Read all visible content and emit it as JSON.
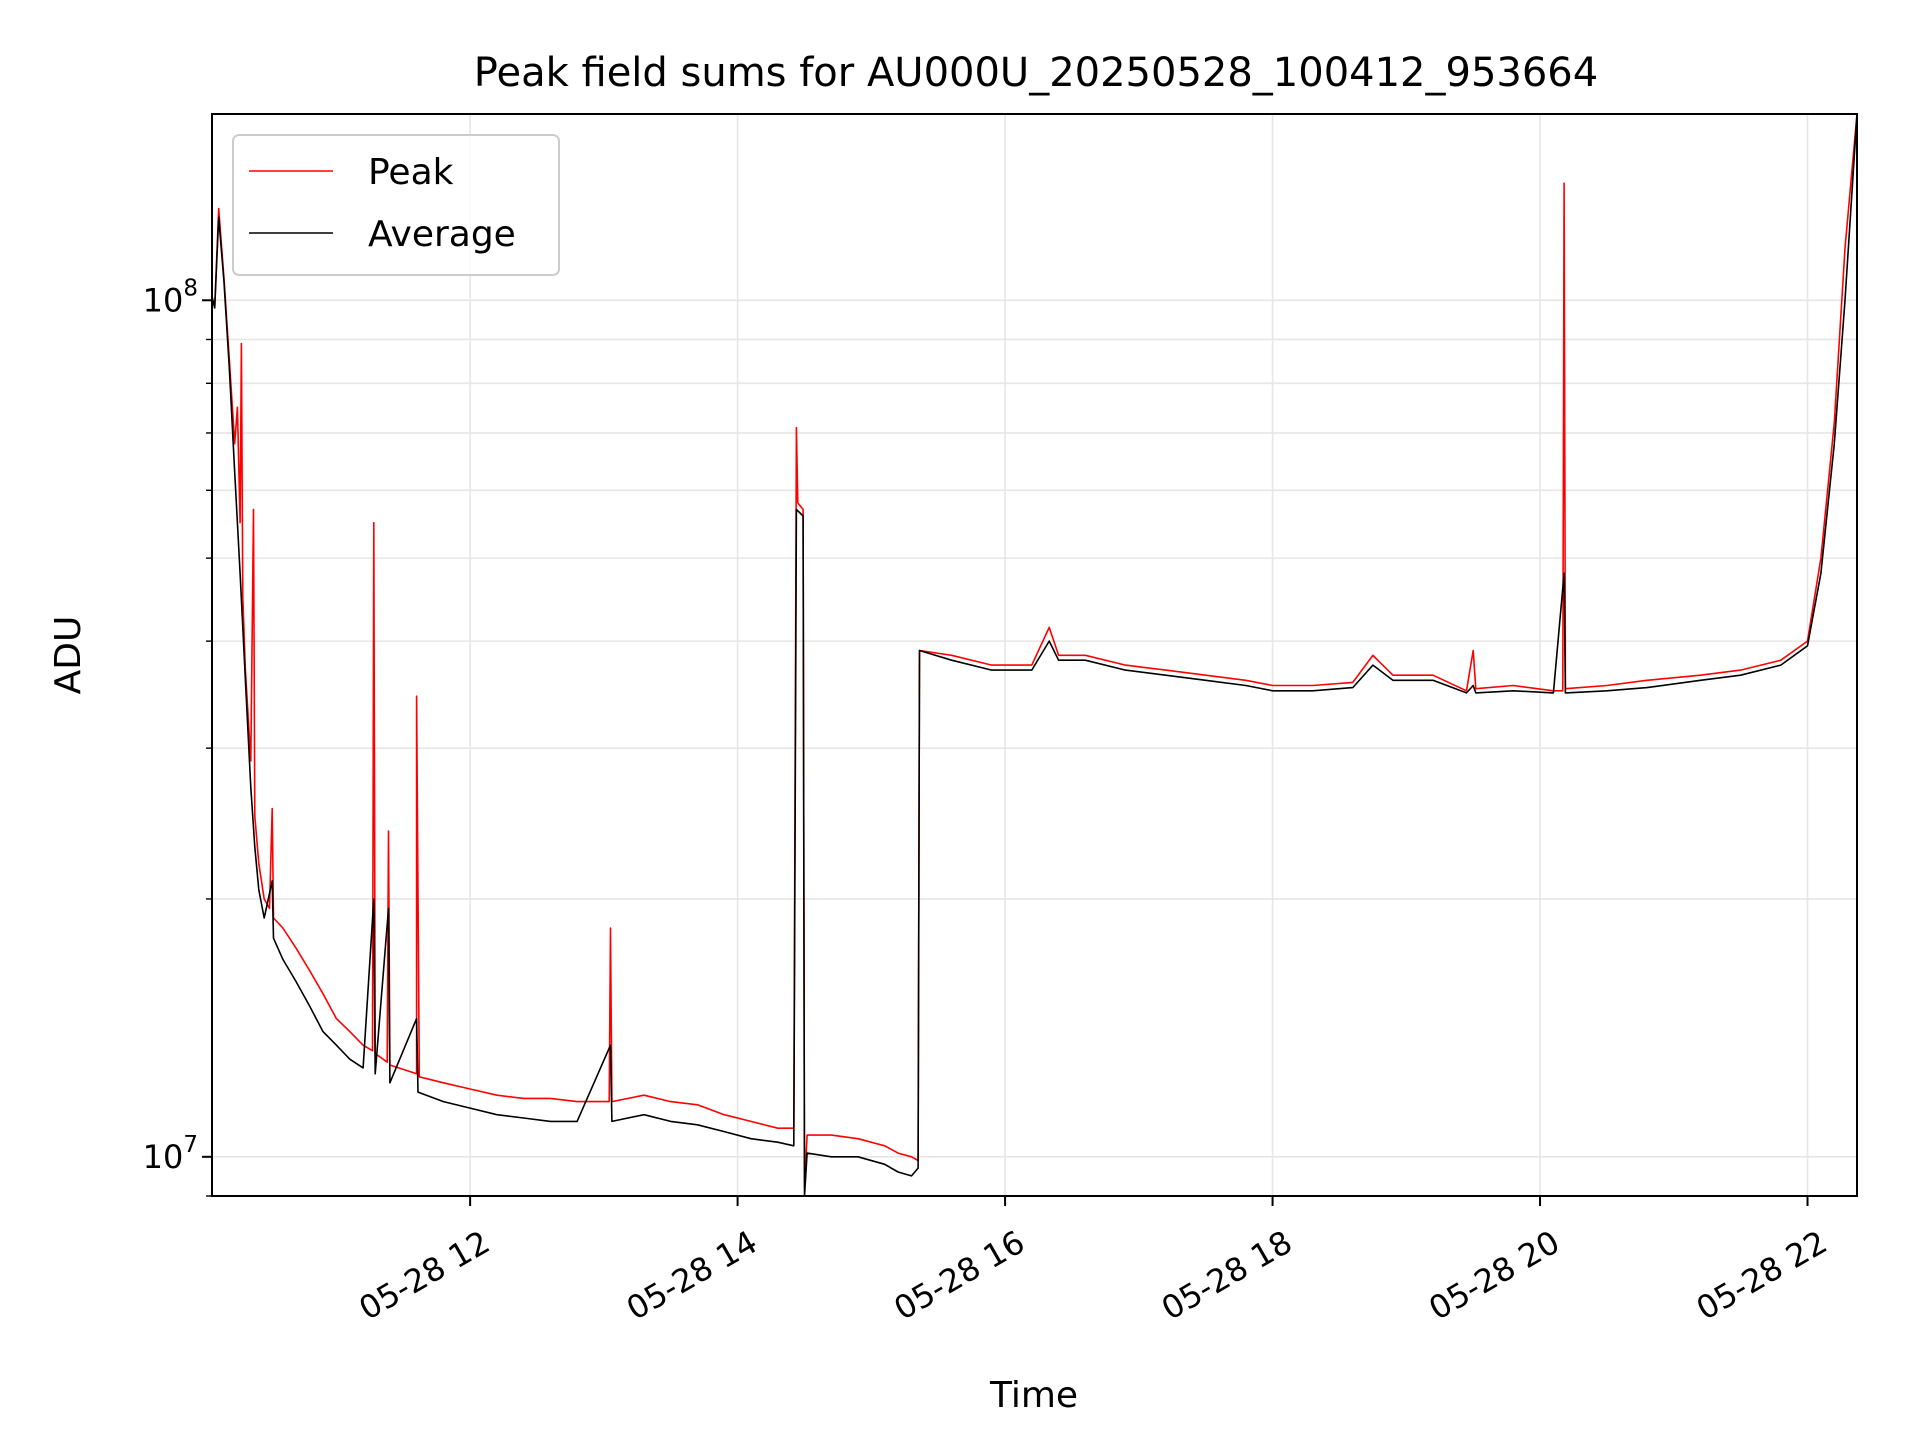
{
  "chart_data": {
    "type": "line",
    "title": "Peak field sums for AU000U_20250528_100412_953664",
    "xlabel": "Time",
    "ylabel": "ADU",
    "y_scale": "log",
    "x_unit": "hours (2025-05-28)",
    "xlim": [
      10.07,
      22.37
    ],
    "ylim": [
      9000000,
      165000000
    ],
    "x_ticks": [
      {
        "value": 12,
        "label": "05-28 12"
      },
      {
        "value": 14,
        "label": "05-28 14"
      },
      {
        "value": 16,
        "label": "05-28 16"
      },
      {
        "value": 18,
        "label": "05-28 18"
      },
      {
        "value": 20,
        "label": "05-28 20"
      },
      {
        "value": 22,
        "label": "05-28 22"
      }
    ],
    "y_ticks": [
      {
        "value": 10000000,
        "base": "10",
        "exp": "7"
      },
      {
        "value": 100000000,
        "base": "10",
        "exp": "8"
      }
    ],
    "grid": true,
    "legend_position": "top-left",
    "series": [
      {
        "name": "Peak",
        "color": "#ff0000",
        "points": [
          [
            10.07,
            101000000
          ],
          [
            10.09,
            98000000
          ],
          [
            10.12,
            128000000
          ],
          [
            10.16,
            106000000
          ],
          [
            10.2,
            85000000
          ],
          [
            10.24,
            68000000
          ],
          [
            10.26,
            75000000
          ],
          [
            10.28,
            55000000
          ],
          [
            10.29,
            89000000
          ],
          [
            10.3,
            45000000
          ],
          [
            10.32,
            37000000
          ],
          [
            10.36,
            29000000
          ],
          [
            10.38,
            57000000
          ],
          [
            10.39,
            25000000
          ],
          [
            10.42,
            22000000
          ],
          [
            10.46,
            20000000
          ],
          [
            10.5,
            19500000
          ],
          [
            10.52,
            25500000
          ],
          [
            10.53,
            19000000
          ],
          [
            10.6,
            18500000
          ],
          [
            10.7,
            17500000
          ],
          [
            10.8,
            16500000
          ],
          [
            10.9,
            15500000
          ],
          [
            11.0,
            14500000
          ],
          [
            11.1,
            14000000
          ],
          [
            11.2,
            13500000
          ],
          [
            11.27,
            13300000
          ],
          [
            11.28,
            55000000
          ],
          [
            11.29,
            13200000
          ],
          [
            11.38,
            12900000
          ],
          [
            11.39,
            24000000
          ],
          [
            11.4,
            12800000
          ],
          [
            11.6,
            12500000
          ],
          [
            11.6,
            34500000
          ],
          [
            11.62,
            12400000
          ],
          [
            11.8,
            12200000
          ],
          [
            12.0,
            12000000
          ],
          [
            12.2,
            11800000
          ],
          [
            12.4,
            11700000
          ],
          [
            12.6,
            11700000
          ],
          [
            12.8,
            11600000
          ],
          [
            13.04,
            11600000
          ],
          [
            13.05,
            18500000
          ],
          [
            13.06,
            11600000
          ],
          [
            13.3,
            11800000
          ],
          [
            13.5,
            11600000
          ],
          [
            13.7,
            11500000
          ],
          [
            13.9,
            11200000
          ],
          [
            14.1,
            11000000
          ],
          [
            14.3,
            10800000
          ],
          [
            14.42,
            10800000
          ],
          [
            14.44,
            71000000
          ],
          [
            14.45,
            58000000
          ],
          [
            14.49,
            57000000
          ],
          [
            14.5,
            9200000
          ],
          [
            14.52,
            10600000
          ],
          [
            14.7,
            10600000
          ],
          [
            14.9,
            10500000
          ],
          [
            15.1,
            10300000
          ],
          [
            15.2,
            10100000
          ],
          [
            15.3,
            10000000
          ],
          [
            15.35,
            9900000
          ],
          [
            15.36,
            39000000
          ],
          [
            15.6,
            38500000
          ],
          [
            15.9,
            37500000
          ],
          [
            16.2,
            37500000
          ],
          [
            16.33,
            41500000
          ],
          [
            16.4,
            38500000
          ],
          [
            16.6,
            38500000
          ],
          [
            16.9,
            37500000
          ],
          [
            17.2,
            37000000
          ],
          [
            17.5,
            36500000
          ],
          [
            17.8,
            36000000
          ],
          [
            18.0,
            35500000
          ],
          [
            18.3,
            35500000
          ],
          [
            18.6,
            35800000
          ],
          [
            18.75,
            38500000
          ],
          [
            18.9,
            36500000
          ],
          [
            19.2,
            36500000
          ],
          [
            19.45,
            35000000
          ],
          [
            19.5,
            39000000
          ],
          [
            19.52,
            35200000
          ],
          [
            19.8,
            35500000
          ],
          [
            20.1,
            35000000
          ],
          [
            20.17,
            35000000
          ],
          [
            20.18,
            137000000
          ],
          [
            20.19,
            35200000
          ],
          [
            20.5,
            35500000
          ],
          [
            20.8,
            36000000
          ],
          [
            21.2,
            36500000
          ],
          [
            21.5,
            37000000
          ],
          [
            21.8,
            38000000
          ],
          [
            22.0,
            40000000
          ],
          [
            22.1,
            50000000
          ],
          [
            22.2,
            72000000
          ],
          [
            22.28,
            115000000
          ],
          [
            22.37,
            165000000
          ]
        ]
      },
      {
        "name": "Average",
        "color": "#000000",
        "points": [
          [
            10.07,
            101000000
          ],
          [
            10.09,
            98000000
          ],
          [
            10.12,
            125000000
          ],
          [
            10.16,
            105000000
          ],
          [
            10.2,
            83000000
          ],
          [
            10.24,
            63000000
          ],
          [
            10.28,
            48000000
          ],
          [
            10.32,
            36000000
          ],
          [
            10.36,
            27000000
          ],
          [
            10.39,
            23000000
          ],
          [
            10.42,
            20500000
          ],
          [
            10.46,
            19000000
          ],
          [
            10.52,
            21000000
          ],
          [
            10.53,
            18000000
          ],
          [
            10.6,
            17000000
          ],
          [
            10.7,
            16000000
          ],
          [
            10.8,
            15000000
          ],
          [
            10.9,
            14000000
          ],
          [
            11.0,
            13500000
          ],
          [
            11.1,
            13000000
          ],
          [
            11.2,
            12700000
          ],
          [
            11.28,
            20000000
          ],
          [
            11.29,
            12500000
          ],
          [
            11.39,
            19500000
          ],
          [
            11.4,
            12200000
          ],
          [
            11.6,
            14500000
          ],
          [
            11.61,
            11900000
          ],
          [
            11.8,
            11600000
          ],
          [
            12.0,
            11400000
          ],
          [
            12.2,
            11200000
          ],
          [
            12.4,
            11100000
          ],
          [
            12.6,
            11000000
          ],
          [
            12.8,
            11000000
          ],
          [
            13.05,
            13500000
          ],
          [
            13.06,
            11000000
          ],
          [
            13.3,
            11200000
          ],
          [
            13.5,
            11000000
          ],
          [
            13.7,
            10900000
          ],
          [
            13.9,
            10700000
          ],
          [
            14.1,
            10500000
          ],
          [
            14.3,
            10400000
          ],
          [
            14.42,
            10300000
          ],
          [
            14.44,
            57000000
          ],
          [
            14.49,
            56000000
          ],
          [
            14.5,
            9000000
          ],
          [
            14.52,
            10100000
          ],
          [
            14.7,
            10000000
          ],
          [
            14.9,
            10000000
          ],
          [
            15.1,
            9800000
          ],
          [
            15.2,
            9600000
          ],
          [
            15.3,
            9500000
          ],
          [
            15.35,
            9700000
          ],
          [
            15.36,
            39000000
          ],
          [
            15.6,
            38000000
          ],
          [
            15.9,
            37000000
          ],
          [
            16.2,
            37000000
          ],
          [
            16.33,
            40000000
          ],
          [
            16.4,
            38000000
          ],
          [
            16.6,
            38000000
          ],
          [
            16.9,
            37000000
          ],
          [
            17.2,
            36500000
          ],
          [
            17.5,
            36000000
          ],
          [
            17.8,
            35500000
          ],
          [
            18.0,
            35000000
          ],
          [
            18.3,
            35000000
          ],
          [
            18.6,
            35300000
          ],
          [
            18.75,
            37500000
          ],
          [
            18.9,
            36000000
          ],
          [
            19.2,
            36000000
          ],
          [
            19.45,
            34800000
          ],
          [
            19.5,
            35500000
          ],
          [
            19.52,
            34800000
          ],
          [
            19.8,
            35000000
          ],
          [
            20.1,
            34800000
          ],
          [
            20.18,
            48000000
          ],
          [
            20.19,
            34800000
          ],
          [
            20.5,
            35000000
          ],
          [
            20.8,
            35300000
          ],
          [
            21.2,
            36000000
          ],
          [
            21.5,
            36500000
          ],
          [
            21.8,
            37500000
          ],
          [
            22.0,
            39500000
          ],
          [
            22.1,
            48000000
          ],
          [
            22.2,
            68000000
          ],
          [
            22.28,
            100000000
          ],
          [
            22.37,
            165000000
          ]
        ]
      }
    ]
  }
}
